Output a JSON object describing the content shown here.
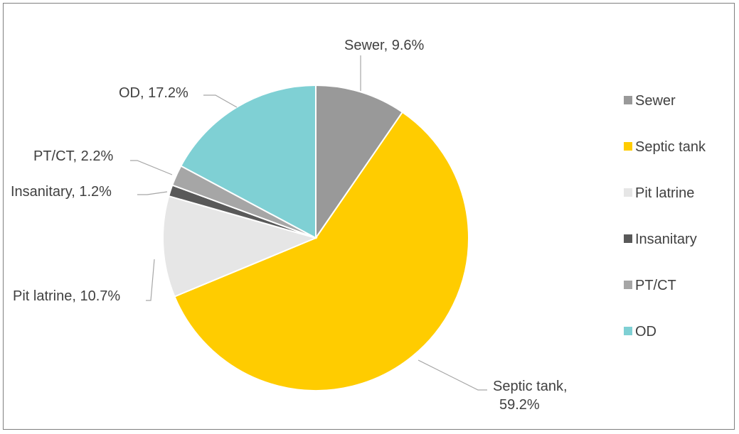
{
  "chart_data": {
    "type": "pie",
    "title": "",
    "legend_position": "right",
    "series": [
      {
        "categories": [
          "Sewer",
          "Septic tank",
          "Pit latrine",
          "Insanitary",
          "PT/CT",
          "OD"
        ],
        "values": [
          9.6,
          59.2,
          10.7,
          1.2,
          2.2,
          17.2
        ],
        "data_labels": [
          "Sewer, 9.6%",
          "Septic tank, 59.2%",
          "Pit latrine, 10.7%",
          "Insanitary, 1.2%",
          "PT/CT, 2.2%",
          "OD, 17.2%"
        ]
      }
    ],
    "colors": [
      "#999999",
      "#ffcc00",
      "#e6e6e6",
      "#595959",
      "#a6a6a6",
      "#7fd0d4"
    ]
  }
}
